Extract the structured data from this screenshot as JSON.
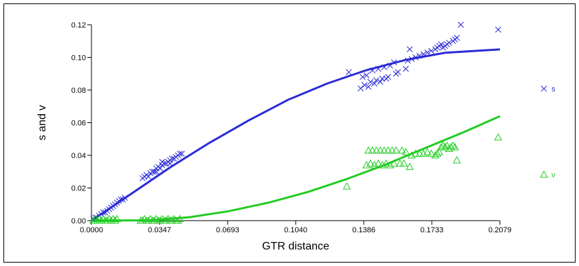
{
  "chart_data": {
    "type": "scatter",
    "title": "",
    "xlabel": "GTR distance",
    "ylabel": "s and v",
    "xlim": [
      0,
      0.2079
    ],
    "ylim": [
      0,
      0.12
    ],
    "x_ticks": [
      "0.0000",
      "0.0347",
      "0.0693",
      "0.1040",
      "0.1386",
      "0.1733",
      "0.2079"
    ],
    "y_ticks": [
      "0.00",
      "0.02",
      "0.04",
      "0.06",
      "0.08",
      "0.10",
      "0.12"
    ],
    "grid": false,
    "legend_position": "right",
    "series": [
      {
        "name": "s",
        "marker": "cross",
        "color": "#2a2ad6",
        "points": [
          [
            0.001,
            0.001
          ],
          [
            0.002,
            0.002
          ],
          [
            0.003,
            0.0015
          ],
          [
            0.004,
            0.003
          ],
          [
            0.005,
            0.004
          ],
          [
            0.006,
            0.005
          ],
          [
            0.007,
            0.005
          ],
          [
            0.008,
            0.006
          ],
          [
            0.009,
            0.007
          ],
          [
            0.01,
            0.008
          ],
          [
            0.011,
            0.009
          ],
          [
            0.012,
            0.01
          ],
          [
            0.013,
            0.011
          ],
          [
            0.014,
            0.012
          ],
          [
            0.015,
            0.013
          ],
          [
            0.016,
            0.013
          ],
          [
            0.017,
            0.014
          ],
          [
            0.026,
            0.026
          ],
          [
            0.027,
            0.027
          ],
          [
            0.028,
            0.028
          ],
          [
            0.029,
            0.027
          ],
          [
            0.03,
            0.029
          ],
          [
            0.031,
            0.03
          ],
          [
            0.032,
            0.03
          ],
          [
            0.033,
            0.032
          ],
          [
            0.034,
            0.033
          ],
          [
            0.035,
            0.032
          ],
          [
            0.036,
            0.034
          ],
          [
            0.037,
            0.035
          ],
          [
            0.038,
            0.035
          ],
          [
            0.039,
            0.036
          ],
          [
            0.04,
            0.037
          ],
          [
            0.041,
            0.038
          ],
          [
            0.042,
            0.038
          ],
          [
            0.043,
            0.039
          ],
          [
            0.044,
            0.04
          ],
          [
            0.045,
            0.041
          ],
          [
            0.046,
            0.041
          ],
          [
            0.033,
            0.03
          ],
          [
            0.036,
            0.036
          ],
          [
            0.04,
            0.035
          ],
          [
            0.131,
            0.091
          ],
          [
            0.137,
            0.081
          ],
          [
            0.138,
            0.088
          ],
          [
            0.139,
            0.083
          ],
          [
            0.14,
            0.089
          ],
          [
            0.141,
            0.082
          ],
          [
            0.142,
            0.085
          ],
          [
            0.143,
            0.092
          ],
          [
            0.144,
            0.084
          ],
          [
            0.145,
            0.086
          ],
          [
            0.146,
            0.093
          ],
          [
            0.147,
            0.085
          ],
          [
            0.148,
            0.087
          ],
          [
            0.149,
            0.094
          ],
          [
            0.15,
            0.087
          ],
          [
            0.151,
            0.088
          ],
          [
            0.152,
            0.095
          ],
          [
            0.154,
            0.097
          ],
          [
            0.155,
            0.09
          ],
          [
            0.156,
            0.091
          ],
          [
            0.16,
            0.093
          ],
          [
            0.161,
            0.098
          ],
          [
            0.162,
            0.105
          ],
          [
            0.163,
            0.099
          ],
          [
            0.165,
            0.1
          ],
          [
            0.167,
            0.101
          ],
          [
            0.169,
            0.102
          ],
          [
            0.171,
            0.103
          ],
          [
            0.173,
            0.104
          ],
          [
            0.175,
            0.105
          ],
          [
            0.176,
            0.106
          ],
          [
            0.177,
            0.107
          ],
          [
            0.178,
            0.108
          ],
          [
            0.179,
            0.106
          ],
          [
            0.18,
            0.107
          ],
          [
            0.181,
            0.108
          ],
          [
            0.182,
            0.109
          ],
          [
            0.184,
            0.11
          ],
          [
            0.185,
            0.111
          ],
          [
            0.186,
            0.112
          ],
          [
            0.188,
            0.12
          ],
          [
            0.207,
            0.117
          ]
        ],
        "trend": [
          [
            0,
            0
          ],
          [
            0.02,
            0.0162
          ],
          [
            0.04,
            0.0326
          ],
          [
            0.06,
            0.0476
          ],
          [
            0.08,
            0.0614
          ],
          [
            0.1,
            0.074
          ],
          [
            0.12,
            0.084
          ],
          [
            0.14,
            0.0922
          ],
          [
            0.16,
            0.0985
          ],
          [
            0.18,
            0.1028
          ],
          [
            0.2079,
            0.1049
          ]
        ]
      },
      {
        "name": "v",
        "marker": "triangle",
        "color": "#22cc22",
        "points": [
          [
            0.001,
            0.0
          ],
          [
            0.002,
            0.001
          ],
          [
            0.003,
            0.0
          ],
          [
            0.004,
            0.001
          ],
          [
            0.005,
            0.0
          ],
          [
            0.006,
            0.001
          ],
          [
            0.007,
            0.0
          ],
          [
            0.008,
            0.0
          ],
          [
            0.009,
            0.001
          ],
          [
            0.01,
            0.0
          ],
          [
            0.011,
            0.001
          ],
          [
            0.012,
            0.0
          ],
          [
            0.013,
            0.001
          ],
          [
            0.025,
            0.0
          ],
          [
            0.026,
            0.0
          ],
          [
            0.027,
            0.001
          ],
          [
            0.028,
            0.0
          ],
          [
            0.029,
            0.0
          ],
          [
            0.03,
            0.001
          ],
          [
            0.031,
            0.0
          ],
          [
            0.032,
            0.0
          ],
          [
            0.033,
            0.001
          ],
          [
            0.034,
            0.0
          ],
          [
            0.035,
            0.0
          ],
          [
            0.036,
            0.001
          ],
          [
            0.037,
            0.0
          ],
          [
            0.038,
            0.0
          ],
          [
            0.039,
            0.001
          ],
          [
            0.04,
            0.0
          ],
          [
            0.041,
            0.0
          ],
          [
            0.042,
            0.001
          ],
          [
            0.043,
            0.0
          ],
          [
            0.044,
            0.0
          ],
          [
            0.045,
            0.001
          ],
          [
            0.13,
            0.021
          ],
          [
            0.14,
            0.034
          ],
          [
            0.141,
            0.043
          ],
          [
            0.142,
            0.035
          ],
          [
            0.143,
            0.043
          ],
          [
            0.144,
            0.034
          ],
          [
            0.145,
            0.043
          ],
          [
            0.146,
            0.035
          ],
          [
            0.147,
            0.043
          ],
          [
            0.148,
            0.034
          ],
          [
            0.149,
            0.043
          ],
          [
            0.15,
            0.035
          ],
          [
            0.151,
            0.043
          ],
          [
            0.152,
            0.034
          ],
          [
            0.153,
            0.043
          ],
          [
            0.154,
            0.035
          ],
          [
            0.155,
            0.043
          ],
          [
            0.157,
            0.035
          ],
          [
            0.158,
            0.043
          ],
          [
            0.159,
            0.035
          ],
          [
            0.16,
            0.042
          ],
          [
            0.162,
            0.033
          ],
          [
            0.163,
            0.04
          ],
          [
            0.165,
            0.041
          ],
          [
            0.167,
            0.041
          ],
          [
            0.169,
            0.041
          ],
          [
            0.171,
            0.042
          ],
          [
            0.173,
            0.041
          ],
          [
            0.175,
            0.04
          ],
          [
            0.176,
            0.041
          ],
          [
            0.177,
            0.042
          ],
          [
            0.178,
            0.045
          ],
          [
            0.179,
            0.046
          ],
          [
            0.18,
            0.045
          ],
          [
            0.181,
            0.046
          ],
          [
            0.182,
            0.044
          ],
          [
            0.183,
            0.045
          ],
          [
            0.184,
            0.046
          ],
          [
            0.185,
            0.045
          ],
          [
            0.186,
            0.037
          ],
          [
            0.207,
            0.051
          ]
        ],
        "trend": [
          [
            0,
            0
          ],
          [
            0.03,
            0.0002
          ],
          [
            0.05,
            0.0021
          ],
          [
            0.07,
            0.0058
          ],
          [
            0.09,
            0.011
          ],
          [
            0.11,
            0.0175
          ],
          [
            0.13,
            0.0255
          ],
          [
            0.15,
            0.0345
          ],
          [
            0.17,
            0.0445
          ],
          [
            0.19,
            0.0545
          ],
          [
            0.2079,
            0.064
          ]
        ]
      }
    ]
  }
}
